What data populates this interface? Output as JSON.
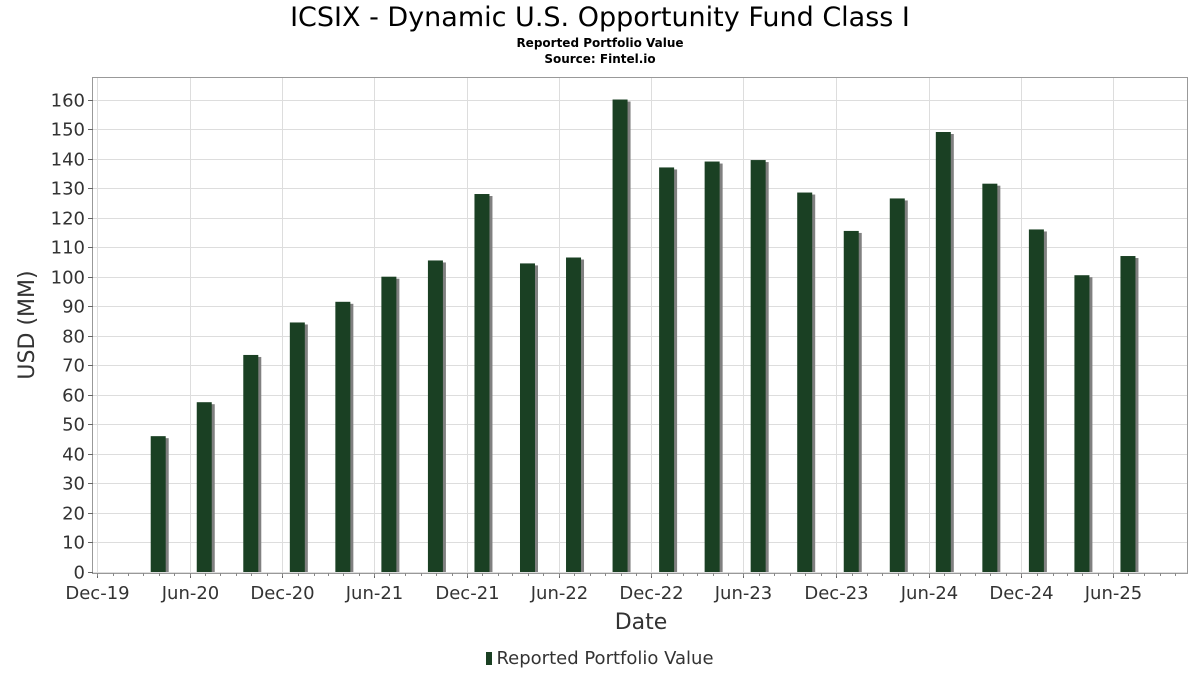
{
  "header": {
    "title": "ICSIX - Dynamic U.S. Opportunity Fund Class I",
    "subtitle": "Reported Portfolio Value",
    "source": "Source: Fintel.io"
  },
  "legend": {
    "label": "Reported Portfolio Value",
    "placement": "bottom-center"
  },
  "colors": {
    "bar": "#1a4023",
    "bar_shadow": "#808080",
    "grid": "#dddddd",
    "plot_border": "#999999"
  },
  "chart_data": {
    "type": "bar",
    "title": "ICSIX - Dynamic U.S. Opportunity Fund Class I",
    "subtitle": "Reported Portfolio Value",
    "xlabel": "Date",
    "ylabel": "USD (MM)",
    "ylim": [
      0,
      167
    ],
    "yticks": [
      0,
      10,
      20,
      30,
      40,
      50,
      60,
      70,
      80,
      90,
      100,
      110,
      120,
      130,
      140,
      150,
      160
    ],
    "xlim": [
      "2019-12-01",
      "2025-10-01"
    ],
    "xticks": [
      {
        "date": "2019-12-01",
        "label": "Dec-19"
      },
      {
        "date": "2020-06-01",
        "label": "Jun-20"
      },
      {
        "date": "2020-12-01",
        "label": "Dec-20"
      },
      {
        "date": "2021-06-01",
        "label": "Jun-21"
      },
      {
        "date": "2021-12-01",
        "label": "Dec-21"
      },
      {
        "date": "2022-06-01",
        "label": "Jun-22"
      },
      {
        "date": "2022-12-01",
        "label": "Dec-22"
      },
      {
        "date": "2023-06-01",
        "label": "Jun-23"
      },
      {
        "date": "2023-12-01",
        "label": "Dec-23"
      },
      {
        "date": "2024-06-01",
        "label": "Jun-24"
      },
      {
        "date": "2024-12-01",
        "label": "Dec-24"
      },
      {
        "date": "2025-06-01",
        "label": "Jun-25"
      }
    ],
    "grid": true,
    "series": [
      {
        "name": "Reported Portfolio Value",
        "x": [
          "2020-03-31",
          "2020-06-30",
          "2020-09-30",
          "2020-12-31",
          "2021-03-31",
          "2021-06-30",
          "2021-09-30",
          "2021-12-31",
          "2022-03-31",
          "2022-06-30",
          "2022-09-30",
          "2022-12-31",
          "2023-03-31",
          "2023-06-30",
          "2023-09-30",
          "2023-12-31",
          "2024-03-31",
          "2024-06-30",
          "2024-09-30",
          "2024-12-31",
          "2025-03-31",
          "2025-06-30"
        ],
        "values": [
          46,
          57.5,
          73.5,
          84.5,
          91.5,
          100,
          105.5,
          128,
          104.5,
          106.5,
          160,
          137,
          139,
          139.5,
          128.5,
          115.5,
          126.5,
          149,
          131.5,
          116,
          100.5,
          107
        ]
      }
    ]
  }
}
